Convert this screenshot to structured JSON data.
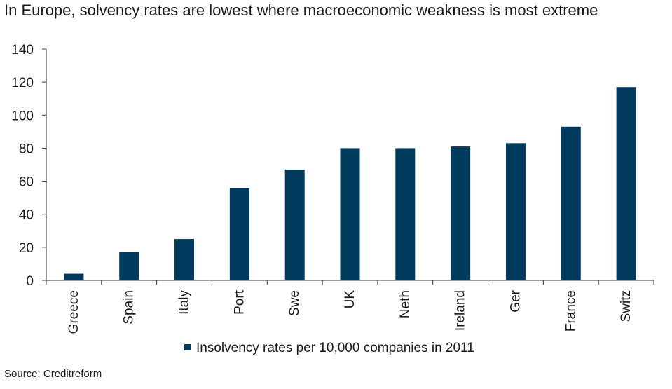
{
  "title": "In Europe, solvency rates are lowest where macroeconomic weakness is most extreme",
  "source": "Source: Creditreform",
  "chart_data": {
    "type": "bar",
    "categories": [
      "Greece",
      "Spain",
      "Italy",
      "Port",
      "Swe",
      "UK",
      "Neth",
      "Ireland",
      "Ger",
      "France",
      "Switz"
    ],
    "series": [
      {
        "name": "Insolvency rates per 10,000 companies in 2011",
        "values": [
          4,
          17,
          25,
          56,
          67,
          80,
          80,
          81,
          83,
          93,
          117
        ]
      }
    ],
    "ylim": [
      0,
      140
    ],
    "yticks": [
      0,
      20,
      40,
      60,
      80,
      100,
      120,
      140
    ],
    "grid": false,
    "legend_position": "bottom",
    "bar_color": "#003a5c"
  }
}
